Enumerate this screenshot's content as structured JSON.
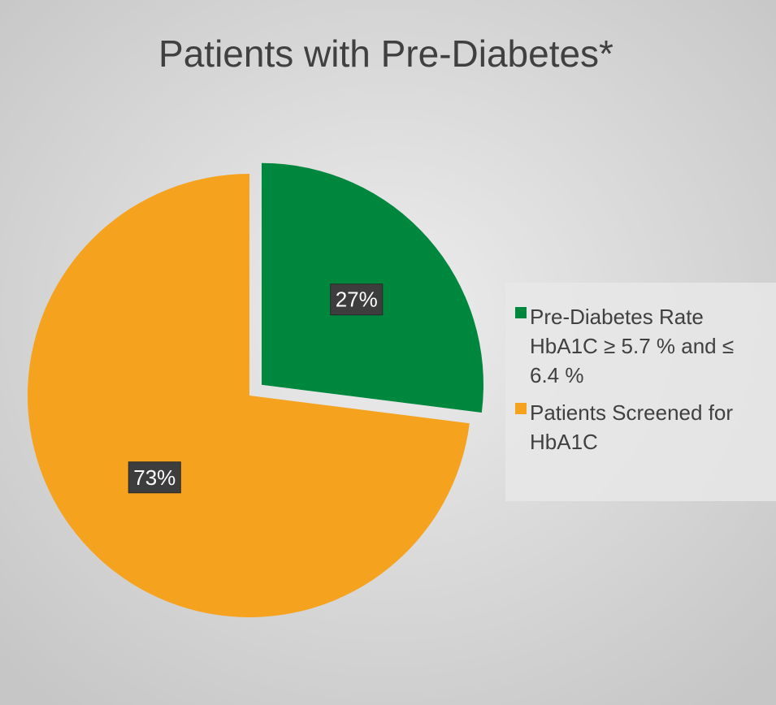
{
  "chart_data": {
    "type": "pie",
    "title": "Patients with Pre-Diabetes*",
    "categories": [
      "Pre-Diabetes Rate HbA1C ≥ 5.7 % and ≤ 6.4 %",
      "Patients Screened for HbA1C"
    ],
    "values": [
      27,
      73
    ],
    "value_labels": [
      "27%",
      "73%"
    ],
    "colors": [
      "#00873e",
      "#f5a21e"
    ],
    "exploded": [
      true,
      false
    ]
  }
}
